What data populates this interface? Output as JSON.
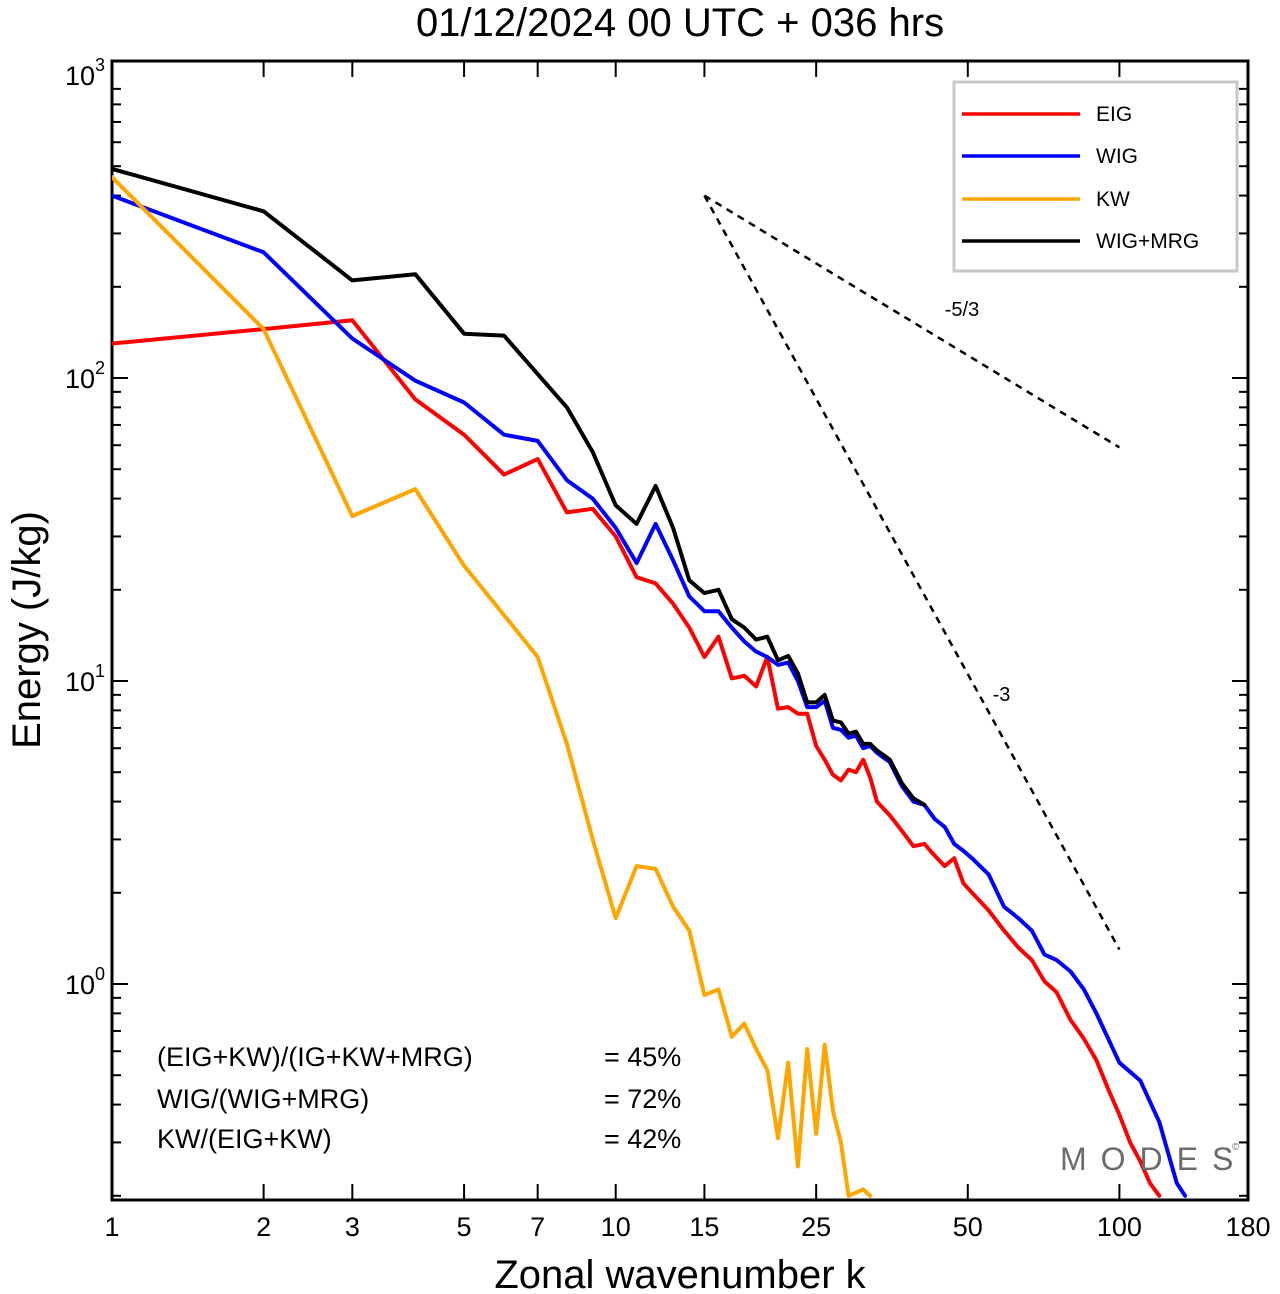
{
  "chart_data": {
    "type": "line",
    "title": "01/12/2024  00 UTC  + 036 hrs",
    "xlabel": "Zonal wavenumber k",
    "ylabel": "Energy (J/kg)",
    "xscale": "log",
    "yscale": "log",
    "xlim": [
      1,
      180
    ],
    "ylim": [
      0.2,
      1000
    ],
    "xticks": [
      {
        "value": 1,
        "label": "1"
      },
      {
        "value": 2,
        "label": "2"
      },
      {
        "value": 3,
        "label": "3"
      },
      {
        "value": 5,
        "label": "5"
      },
      {
        "value": 7,
        "label": "7"
      },
      {
        "value": 10,
        "label": "10"
      },
      {
        "value": 15,
        "label": "15"
      },
      {
        "value": 25,
        "label": "25"
      },
      {
        "value": 50,
        "label": "50"
      },
      {
        "value": 100,
        "label": "100"
      },
      {
        "value": 180,
        "label": "180"
      }
    ],
    "yticks": [
      {
        "value": 1,
        "base": "10",
        "exp": "0"
      },
      {
        "value": 10,
        "base": "10",
        "exp": "1"
      },
      {
        "value": 100,
        "base": "10",
        "exp": "2"
      },
      {
        "value": 1000,
        "base": "10",
        "exp": "3"
      }
    ],
    "grid": false,
    "legend_position": "top-right",
    "series": [
      {
        "name": "EIG",
        "color": "#ff0000",
        "points": [
          [
            1,
            130
          ],
          [
            2,
            145
          ],
          [
            3,
            155
          ],
          [
            4,
            85
          ],
          [
            5,
            65
          ],
          [
            6,
            48
          ],
          [
            7,
            54
          ],
          [
            8,
            36
          ],
          [
            9,
            37
          ],
          [
            10,
            30
          ],
          [
            11,
            22
          ],
          [
            12,
            21
          ],
          [
            13,
            18
          ],
          [
            14,
            15
          ],
          [
            15,
            12
          ],
          [
            16,
            14
          ],
          [
            17,
            10.2
          ],
          [
            18,
            10.4
          ],
          [
            19,
            9.6
          ],
          [
            20,
            12
          ],
          [
            21,
            8.1
          ],
          [
            22,
            8.2
          ],
          [
            23,
            7.8
          ],
          [
            24,
            7.8
          ],
          [
            25,
            6.1
          ],
          [
            26,
            5.5
          ],
          [
            27,
            4.9
          ],
          [
            28,
            4.7
          ],
          [
            29,
            5.1
          ],
          [
            30,
            5.0
          ],
          [
            31,
            5.5
          ],
          [
            32,
            4.8
          ],
          [
            33,
            4.0
          ],
          [
            35,
            3.6
          ],
          [
            37,
            3.2
          ],
          [
            39,
            2.85
          ],
          [
            41,
            2.9
          ],
          [
            43,
            2.65
          ],
          [
            45,
            2.45
          ],
          [
            47,
            2.6
          ],
          [
            49,
            2.15
          ],
          [
            51,
            2.0
          ],
          [
            55,
            1.75
          ],
          [
            59,
            1.5
          ],
          [
            63,
            1.32
          ],
          [
            67,
            1.2
          ],
          [
            71,
            1.02
          ],
          [
            75,
            0.94
          ],
          [
            80,
            0.76
          ],
          [
            85,
            0.66
          ],
          [
            90,
            0.56
          ],
          [
            95,
            0.45
          ],
          [
            100,
            0.37
          ],
          [
            105,
            0.3
          ],
          [
            110,
            0.26
          ],
          [
            115,
            0.22
          ],
          [
            120,
            0.2
          ]
        ]
      },
      {
        "name": "WIG",
        "color": "#0000ff",
        "points": [
          [
            1,
            400
          ],
          [
            2,
            260
          ],
          [
            3,
            135
          ],
          [
            4,
            98
          ],
          [
            5,
            83
          ],
          [
            6,
            65
          ],
          [
            7,
            62
          ],
          [
            8,
            46
          ],
          [
            9,
            40
          ],
          [
            10,
            32
          ],
          [
            11,
            24.5
          ],
          [
            12,
            33
          ],
          [
            13,
            25
          ],
          [
            14,
            19
          ],
          [
            15,
            17
          ],
          [
            16,
            17
          ],
          [
            17,
            15
          ],
          [
            18,
            13.5
          ],
          [
            19,
            12.5
          ],
          [
            20,
            12
          ],
          [
            21,
            11.3
          ],
          [
            22,
            11.5
          ],
          [
            23,
            10
          ],
          [
            24,
            8.2
          ],
          [
            25,
            8.2
          ],
          [
            26,
            8.6
          ],
          [
            27,
            7.0
          ],
          [
            28,
            6.9
          ],
          [
            29,
            6.5
          ],
          [
            30,
            6.6
          ],
          [
            31,
            6.0
          ],
          [
            32,
            6.1
          ],
          [
            33,
            5.8
          ],
          [
            35,
            5.4
          ],
          [
            37,
            4.5
          ],
          [
            39,
            4.0
          ],
          [
            41,
            3.9
          ],
          [
            43,
            3.5
          ],
          [
            45,
            3.3
          ],
          [
            47,
            2.9
          ],
          [
            49,
            2.75
          ],
          [
            51,
            2.6
          ],
          [
            55,
            2.3
          ],
          [
            59,
            1.8
          ],
          [
            63,
            1.65
          ],
          [
            67,
            1.5
          ],
          [
            71,
            1.25
          ],
          [
            75,
            1.2
          ],
          [
            80,
            1.1
          ],
          [
            85,
            0.96
          ],
          [
            90,
            0.8
          ],
          [
            95,
            0.66
          ],
          [
            100,
            0.55
          ],
          [
            110,
            0.48
          ],
          [
            120,
            0.35
          ],
          [
            130,
            0.22
          ],
          [
            135,
            0.2
          ]
        ]
      },
      {
        "name": "KW",
        "color": "#ffa500",
        "points": [
          [
            1,
            460
          ],
          [
            2,
            145
          ],
          [
            3,
            35
          ],
          [
            4,
            43
          ],
          [
            5,
            24
          ],
          [
            6,
            16.5
          ],
          [
            7,
            12
          ],
          [
            8,
            6.2
          ],
          [
            9,
            3.0
          ],
          [
            10,
            1.65
          ],
          [
            11,
            2.45
          ],
          [
            12,
            2.4
          ],
          [
            13,
            1.8
          ],
          [
            14,
            1.5
          ],
          [
            15,
            0.92
          ],
          [
            16,
            0.96
          ],
          [
            17,
            0.67
          ],
          [
            18,
            0.74
          ],
          [
            19,
            0.61
          ],
          [
            20,
            0.52
          ],
          [
            21,
            0.31
          ],
          [
            22,
            0.55
          ],
          [
            23,
            0.25
          ],
          [
            24,
            0.61
          ],
          [
            25,
            0.32
          ],
          [
            26,
            0.63
          ],
          [
            27,
            0.38
          ],
          [
            28,
            0.3
          ],
          [
            29,
            0.2
          ],
          [
            31,
            0.21
          ],
          [
            32,
            0.2
          ]
        ]
      },
      {
        "name": "WIG+MRG",
        "color": "#000000",
        "points": [
          [
            1,
            490
          ],
          [
            2,
            355
          ],
          [
            3,
            210
          ],
          [
            4,
            220
          ],
          [
            5,
            140
          ],
          [
            6,
            138
          ],
          [
            7,
            103
          ],
          [
            8,
            80
          ],
          [
            9,
            57
          ],
          [
            10,
            38
          ],
          [
            11,
            33
          ],
          [
            12,
            44
          ],
          [
            13,
            32
          ],
          [
            14,
            21.5
          ],
          [
            15,
            19.5
          ],
          [
            16,
            20
          ],
          [
            17,
            16
          ],
          [
            18,
            15
          ],
          [
            19,
            13.7
          ],
          [
            20,
            14
          ],
          [
            21,
            11.7
          ],
          [
            22,
            12.1
          ],
          [
            23,
            10.6
          ],
          [
            24,
            8.5
          ],
          [
            25,
            8.5
          ],
          [
            26,
            9
          ],
          [
            27,
            7.4
          ],
          [
            28,
            7.3
          ],
          [
            29,
            6.7
          ],
          [
            30,
            6.8
          ],
          [
            31,
            6.2
          ],
          [
            32,
            6.2
          ],
          [
            33,
            5.9
          ],
          [
            35,
            5.5
          ],
          [
            37,
            4.6
          ],
          [
            39,
            4.1
          ],
          [
            41,
            3.9
          ]
        ]
      }
    ],
    "reference_lines": [
      {
        "label": "-5/3",
        "points": [
          [
            15,
            400
          ],
          [
            100,
            59
          ]
        ]
      },
      {
        "label": "-3",
        "points": [
          [
            15,
            400
          ],
          [
            100,
            1.3
          ]
        ]
      }
    ],
    "annotations": [
      {
        "label": "(EIG+KW)/(IG+KW+MRG)",
        "value": "= 45%"
      },
      {
        "label": "WIG/(WIG+MRG)",
        "value": "= 72%"
      },
      {
        "label": "KW/(EIG+KW)",
        "value": "= 42%"
      }
    ],
    "watermark": "MODES",
    "watermark_mark": "©"
  }
}
